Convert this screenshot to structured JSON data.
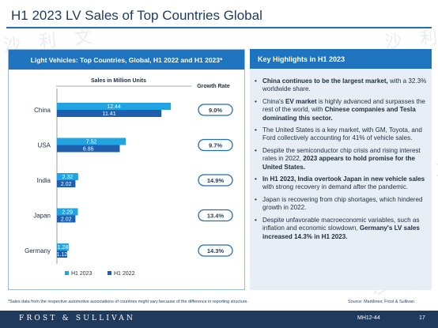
{
  "page": {
    "title": "H1 2023 LV Sales of Top Countries Global",
    "watermark": "沙 利 文"
  },
  "left_panel": {
    "header": "Light Vehicles: Top Countries, Global, H1 2022 and H1 2023*"
  },
  "right_panel": {
    "header": "Key Highlights in H1 2023",
    "bullets": [
      [
        {
          "t": "China continues to be the largest market,",
          "b": true
        },
        {
          "t": " with a 32.3% worldwide share.",
          "b": false
        }
      ],
      [
        {
          "t": "China's ",
          "b": false
        },
        {
          "t": "EV market",
          "b": true
        },
        {
          "t": " is highly advanced and surpasses the rest of the world, with ",
          "b": false
        },
        {
          "t": "Chinese companies and Tesla dominating this sector.",
          "b": true
        }
      ],
      [
        {
          "t": "The United States is a key market, with GM, Toyota, and Ford collectively accounting for 41% of vehicle sales.",
          "b": false
        }
      ],
      [
        {
          "t": "Despite the semiconductor chip crisis and rising interest rates in 2022, ",
          "b": false
        },
        {
          "t": "2023 appears to hold promise for the United States.",
          "b": true
        }
      ],
      [
        {
          "t": "In H1 2023, India overtook Japan in new vehicle sales",
          "b": true
        },
        {
          "t": " with strong recovery in demand after the pandemic.",
          "b": false
        }
      ],
      [
        {
          "t": "Japan is recovering from chip shortages, which hindered growth in 2022.",
          "b": false
        }
      ],
      [
        {
          "t": "Despite unfavorable macroeconomic variables, such as inflation and economic slowdown, ",
          "b": false
        },
        {
          "t": "Germany's LV sales increased 14.3% in H1 2023.",
          "b": true
        }
      ]
    ]
  },
  "footnote": "*Sales data from the respective automotive associations of countries might vary because of the difference in reporting structure.",
  "source": "Source: Marklines; Frost & Sullivan",
  "footer": {
    "logo": "FROST & SULLIVAN",
    "code": "MH12-44",
    "page_number": "17"
  },
  "colors": {
    "h1_2023": "#22a3e2",
    "h1_2022": "#1f5fae",
    "badge_border": "#1f6fb8",
    "header_bg": "#1e74be"
  },
  "chart_data": {
    "type": "bar",
    "orientation": "horizontal",
    "title": "Light Vehicles: Top Countries, Global, H1 2022 and H1 2023*",
    "xlabel": "Sales in Million Units",
    "growth_label": "Growth Rate",
    "categories": [
      "China",
      "USA",
      "India",
      "Japan",
      "Germany"
    ],
    "series": [
      {
        "name": "H1 2023",
        "values": [
          12.44,
          7.52,
          2.32,
          2.29,
          1.28
        ],
        "labels": [
          "12.44",
          "7.52",
          "2.32",
          "2.29",
          "1.28"
        ],
        "color": "#22a3e2"
      },
      {
        "name": "H1 2022",
        "values": [
          11.41,
          6.86,
          2.02,
          2.02,
          1.12
        ],
        "labels": [
          "11.41",
          "6.86",
          "2.02",
          "2.02",
          "1.12"
        ],
        "color": "#1f5fae"
      }
    ],
    "growth": [
      "9.0%",
      "9.7%",
      "14.9%",
      "13.4%",
      "14.3%"
    ],
    "xlim": [
      0,
      14.5
    ],
    "legend_position": "bottom-left"
  }
}
